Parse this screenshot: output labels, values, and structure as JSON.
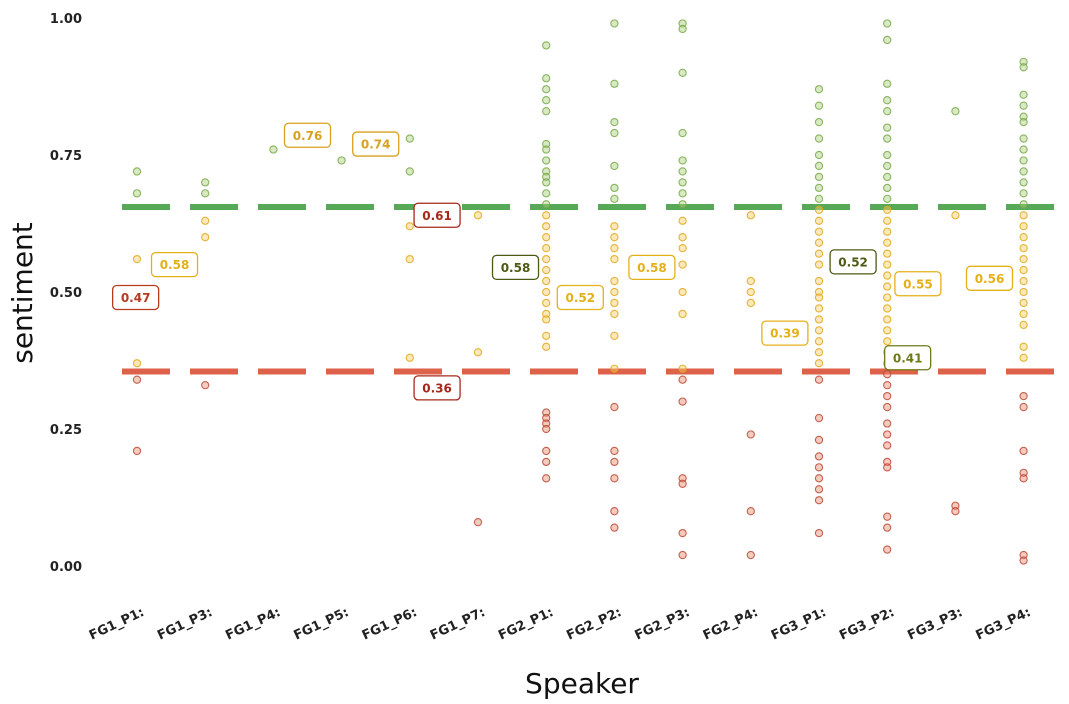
{
  "chart_data": {
    "type": "scatter",
    "title": "",
    "xlabel": "Speaker",
    "ylabel": "sentiment",
    "ylim": [
      0,
      1
    ],
    "yticks": [
      "0.00",
      "0.25",
      "0.50",
      "0.75",
      "1.00"
    ],
    "categories": [
      "FG1_P1:",
      "FG1_P3:",
      "FG1_P4:",
      "FG1_P5:",
      "FG1_P6:",
      "FG1_P7:",
      "FG2_P1:",
      "FG2_P2:",
      "FG2_P3:",
      "FG2_P4:",
      "FG3_P1:",
      "FG3_P2:",
      "FG3_P3:",
      "FG3_P4:"
    ],
    "hlines": [
      {
        "y": 0.655,
        "color": "#3a9a3a"
      },
      {
        "y": 0.355,
        "color": "#d9462b"
      }
    ],
    "points": [
      [
        0.72,
        0.68,
        0.56,
        0.48,
        0.37,
        0.34,
        0.21
      ],
      [
        0.7,
        0.68,
        0.63,
        0.6,
        0.33
      ],
      [
        0.76
      ],
      [
        0.74
      ],
      [
        0.78,
        0.72,
        0.62,
        0.56,
        0.38
      ],
      [
        0.64,
        0.39,
        0.08
      ],
      [
        0.95,
        0.89,
        0.87,
        0.85,
        0.83,
        0.77,
        0.76,
        0.74,
        0.72,
        0.71,
        0.7,
        0.68,
        0.66,
        0.64,
        0.62,
        0.6,
        0.58,
        0.56,
        0.54,
        0.52,
        0.5,
        0.48,
        0.46,
        0.45,
        0.42,
        0.4,
        0.28,
        0.27,
        0.26,
        0.25,
        0.21,
        0.19,
        0.16
      ],
      [
        0.99,
        0.88,
        0.81,
        0.79,
        0.73,
        0.69,
        0.67,
        0.62,
        0.6,
        0.58,
        0.56,
        0.52,
        0.5,
        0.48,
        0.46,
        0.42,
        0.36,
        0.29,
        0.21,
        0.19,
        0.16,
        0.1,
        0.07
      ],
      [
        0.99,
        0.98,
        0.9,
        0.79,
        0.74,
        0.72,
        0.7,
        0.68,
        0.66,
        0.63,
        0.6,
        0.58,
        0.55,
        0.5,
        0.46,
        0.36,
        0.34,
        0.3,
        0.16,
        0.15,
        0.06,
        0.02
      ],
      [
        0.64,
        0.52,
        0.5,
        0.48,
        0.24,
        0.1,
        0.02
      ],
      [
        0.87,
        0.84,
        0.81,
        0.78,
        0.75,
        0.73,
        0.71,
        0.69,
        0.67,
        0.65,
        0.63,
        0.61,
        0.59,
        0.57,
        0.55,
        0.52,
        0.5,
        0.49,
        0.47,
        0.45,
        0.43,
        0.41,
        0.39,
        0.37,
        0.34,
        0.27,
        0.23,
        0.2,
        0.18,
        0.16,
        0.14,
        0.12,
        0.06
      ],
      [
        0.99,
        0.96,
        0.88,
        0.85,
        0.83,
        0.8,
        0.78,
        0.75,
        0.73,
        0.71,
        0.69,
        0.67,
        0.65,
        0.63,
        0.61,
        0.59,
        0.57,
        0.55,
        0.53,
        0.51,
        0.49,
        0.47,
        0.45,
        0.43,
        0.41,
        0.39,
        0.37,
        0.35,
        0.33,
        0.31,
        0.29,
        0.26,
        0.24,
        0.22,
        0.19,
        0.18,
        0.09,
        0.07,
        0.03
      ],
      [
        0.83,
        0.64,
        0.11,
        0.1
      ],
      [
        0.92,
        0.91,
        0.86,
        0.84,
        0.82,
        0.81,
        0.78,
        0.76,
        0.74,
        0.72,
        0.7,
        0.68,
        0.66,
        0.64,
        0.62,
        0.6,
        0.58,
        0.56,
        0.54,
        0.52,
        0.5,
        0.48,
        0.46,
        0.44,
        0.4,
        0.38,
        0.31,
        0.29,
        0.21,
        0.17,
        0.16,
        0.02,
        0.01
      ]
    ],
    "mean_labels": [
      {
        "text": "0.47",
        "cat": 0,
        "y": 0.49,
        "color": "#b83a1e",
        "dx": -0.02
      },
      {
        "text": "0.58",
        "cat": 0,
        "y": 0.55,
        "color": "#e4b018",
        "dx": 0.55
      },
      {
        "text": "0.76",
        "cat": 2,
        "y": 0.786,
        "color": "#d9a11e",
        "dx": 0.5
      },
      {
        "text": "0.74",
        "cat": 3,
        "y": 0.77,
        "color": "#d9a11e",
        "dx": 0.5
      },
      {
        "text": "0.61",
        "cat": 4,
        "y": 0.64,
        "color": "#a6281a",
        "dx": 0.4
      },
      {
        "text": "0.36",
        "cat": 4,
        "y": 0.325,
        "color": "#a6281a",
        "dx": 0.4
      },
      {
        "text": "0.58",
        "cat": 5,
        "y": 0.545,
        "color": "#4c5a16",
        "dx": 0.55
      },
      {
        "text": "0.52",
        "cat": 6,
        "y": 0.49,
        "color": "#e4b018",
        "dx": 0.5
      },
      {
        "text": "0.58",
        "cat": 7,
        "y": 0.545,
        "color": "#e4b018",
        "dx": 0.55
      },
      {
        "text": "0.39",
        "cat": 9,
        "y": 0.425,
        "color": "#e4b018",
        "dx": 0.5
      },
      {
        "text": "0.52",
        "cat": 10,
        "y": 0.555,
        "color": "#4c5a16",
        "dx": 0.5
      },
      {
        "text": "0.41",
        "cat": 10,
        "y": 0.38,
        "color": "#6e7a18",
        "dx": 1.3
      },
      {
        "text": "0.55",
        "cat": 11,
        "y": 0.515,
        "color": "#e4b018",
        "dx": 0.45
      },
      {
        "text": "0.56",
        "cat": 12,
        "y": 0.525,
        "color": "#e4b018",
        "dx": 0.5
      }
    ]
  }
}
